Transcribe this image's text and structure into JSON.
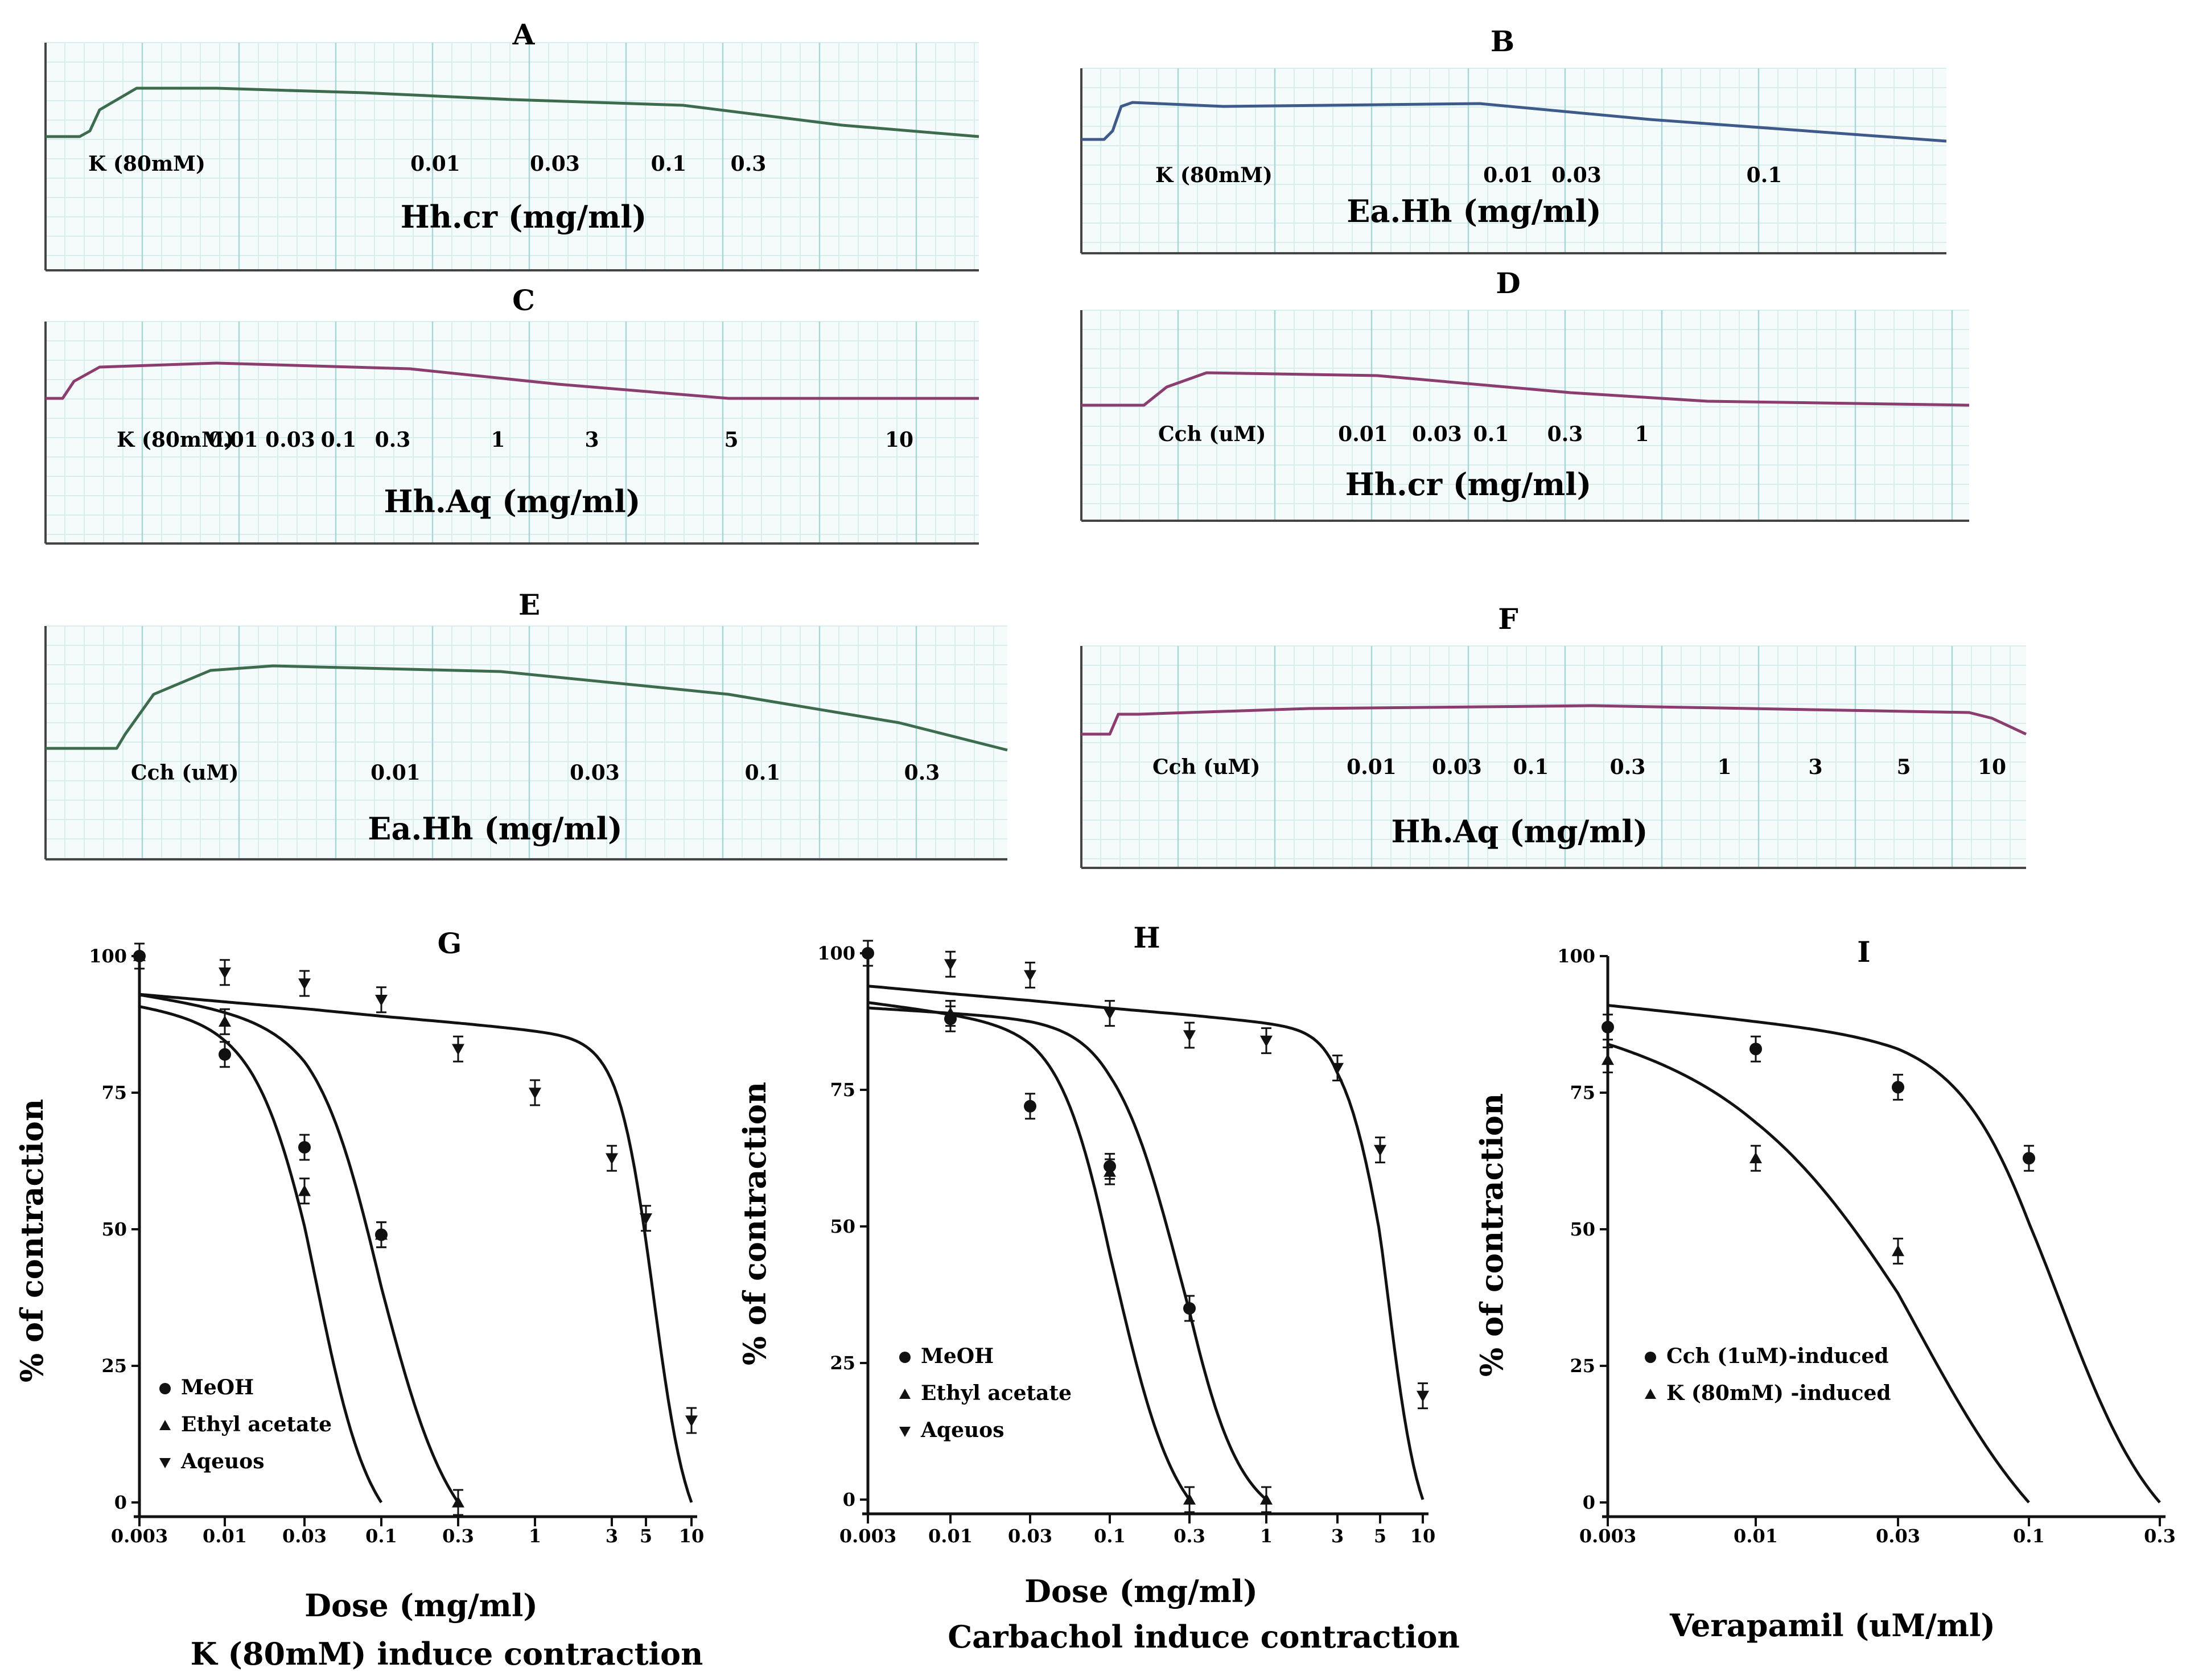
{
  "traces": [
    {
      "id": "A",
      "label": "A",
      "stim": "K (80mM)",
      "doses": [
        "0.01",
        "0.03",
        "0.1",
        "0.3"
      ],
      "axis_label": "Hh.cr (mg/ml)",
      "color": "#3d6b4e"
    },
    {
      "id": "B",
      "label": "B",
      "stim": "K (80mM)",
      "doses": [
        "0.01",
        "0.03",
        "0.1"
      ],
      "axis_label": "Ea.Hh (mg/ml)",
      "color": "#3d5a8a"
    },
    {
      "id": "C",
      "label": "C",
      "stim": "K (80mM)",
      "doses": [
        "0.01",
        "0.03",
        "0.1",
        "0.3",
        "1",
        "3",
        "5",
        "10"
      ],
      "axis_label": "Hh.Aq  (mg/ml)",
      "color": "#8a3d6e"
    },
    {
      "id": "D",
      "label": "D",
      "stim": "Cch (uM)",
      "doses": [
        "0.01",
        "0.03",
        "0.1",
        "0.3",
        "1"
      ],
      "axis_label": "Hh.cr (mg/ml)",
      "color": "#8a3d6e"
    },
    {
      "id": "E",
      "label": "E",
      "stim": "Cch (uM)",
      "doses": [
        "0.01",
        "0.03",
        "0.1",
        "0.3"
      ],
      "axis_label": "Ea.Hh (mg/ml)",
      "color": "#3d6b4e"
    },
    {
      "id": "F",
      "label": "F",
      "stim": "Cch (uM)",
      "doses": [
        "0.01",
        "0.03",
        "0.1",
        "0.3",
        "1",
        "3",
        "5",
        "10"
      ],
      "axis_label": "Hh.Aq (mg/ml)",
      "color": "#8a3d6e"
    }
  ],
  "chart_data": [
    {
      "id": "G",
      "type": "line",
      "title": "G",
      "xlabel": "Dose (mg/ml)",
      "subtitle": "K (80mM) induce contraction",
      "ylabel": "% of contraction",
      "xscale": "log",
      "xticks": [
        "0.003",
        "0.01",
        "0.03",
        "0.1",
        "0.3",
        "1",
        "3",
        "5",
        "10"
      ],
      "yticks": [
        "0",
        "25",
        "50",
        "75",
        "100"
      ],
      "ylim": [
        0,
        100
      ],
      "series": [
        {
          "name": "MeOH",
          "marker": "circle",
          "x": [
            0.003,
            0.01,
            0.03,
            0.1
          ],
          "y": [
            100,
            82,
            65,
            49
          ],
          "curve": [
            91,
            0.036,
            2.4,
            0.1
          ]
        },
        {
          "name": "Ethyl acetate",
          "marker": "triangle",
          "x": [
            0.003,
            0.01,
            0.03,
            0.1,
            0.3
          ],
          "y": [
            100,
            88,
            57,
            49,
            0
          ],
          "curve": [
            93,
            0.1,
            2.0,
            0.3
          ]
        },
        {
          "name": "Aqeuos",
          "marker": "tri-down",
          "x": [
            0.01,
            0.03,
            0.1,
            0.3,
            1,
            3,
            5,
            10
          ],
          "y": [
            97,
            95,
            92,
            83,
            75,
            63,
            52,
            15
          ],
          "curve": [
            93,
            5.6,
            3.8,
            10
          ]
        }
      ]
    },
    {
      "id": "H",
      "type": "line",
      "title": "H",
      "xlabel": "Dose (mg/ml)",
      "subtitle": "Carbachol induce contraction",
      "ylabel": "% of contraction",
      "xscale": "log",
      "xticks": [
        "0.003",
        "0.01",
        "0.03",
        "0.1",
        "0.3",
        "1",
        "3",
        "5",
        "10"
      ],
      "yticks": [
        "0",
        "25",
        "50",
        "75",
        "100"
      ],
      "ylim": [
        0,
        100
      ],
      "series": [
        {
          "name": "MeOH",
          "marker": "circle",
          "x": [
            0.003,
            0.01,
            0.03,
            0.1,
            0.3
          ],
          "y": [
            100,
            88,
            72,
            61,
            35
          ],
          "curve": [
            91,
            0.11,
            2.4,
            0.3
          ]
        },
        {
          "name": "Ethyl acetate",
          "marker": "triangle",
          "x": [
            0.01,
            0.1,
            0.3,
            1
          ],
          "y": [
            89,
            60,
            0,
            0
          ],
          "curve": [
            90,
            0.26,
            2.2,
            1
          ]
        },
        {
          "name": "Aqeuos",
          "marker": "tri-down",
          "x": [
            0.01,
            0.03,
            0.1,
            0.3,
            1,
            3,
            5,
            10
          ],
          "y": [
            98,
            96,
            89,
            85,
            84,
            79,
            64,
            19
          ],
          "curve": [
            94,
            5.6,
            3.8,
            10
          ]
        }
      ]
    },
    {
      "id": "I",
      "type": "line",
      "title": "I",
      "xlabel": "Verapamil (uM/ml)",
      "subtitle": "",
      "ylabel": "% of contraction",
      "xscale": "log",
      "xticks": [
        "0.003",
        "0.01",
        "0.03",
        "0.1",
        "0.3"
      ],
      "yticks": [
        "0",
        "25",
        "50",
        "75",
        "100"
      ],
      "ylim": [
        0,
        100
      ],
      "series": [
        {
          "name": "Cch (1uM)-induced",
          "marker": "circle",
          "x": [
            0.003,
            0.01,
            0.03,
            0.1
          ],
          "y": [
            87,
            83,
            76,
            63
          ],
          "curve": [
            91,
            0.13,
            2.4,
            0.3
          ]
        },
        {
          "name": "K (80mM) -induced",
          "marker": "triangle",
          "x": [
            0.003,
            0.01,
            0.03
          ],
          "y": [
            81,
            63,
            46
          ],
          "curve": [
            86,
            0.035,
            1.5,
            0.1
          ]
        }
      ]
    }
  ]
}
